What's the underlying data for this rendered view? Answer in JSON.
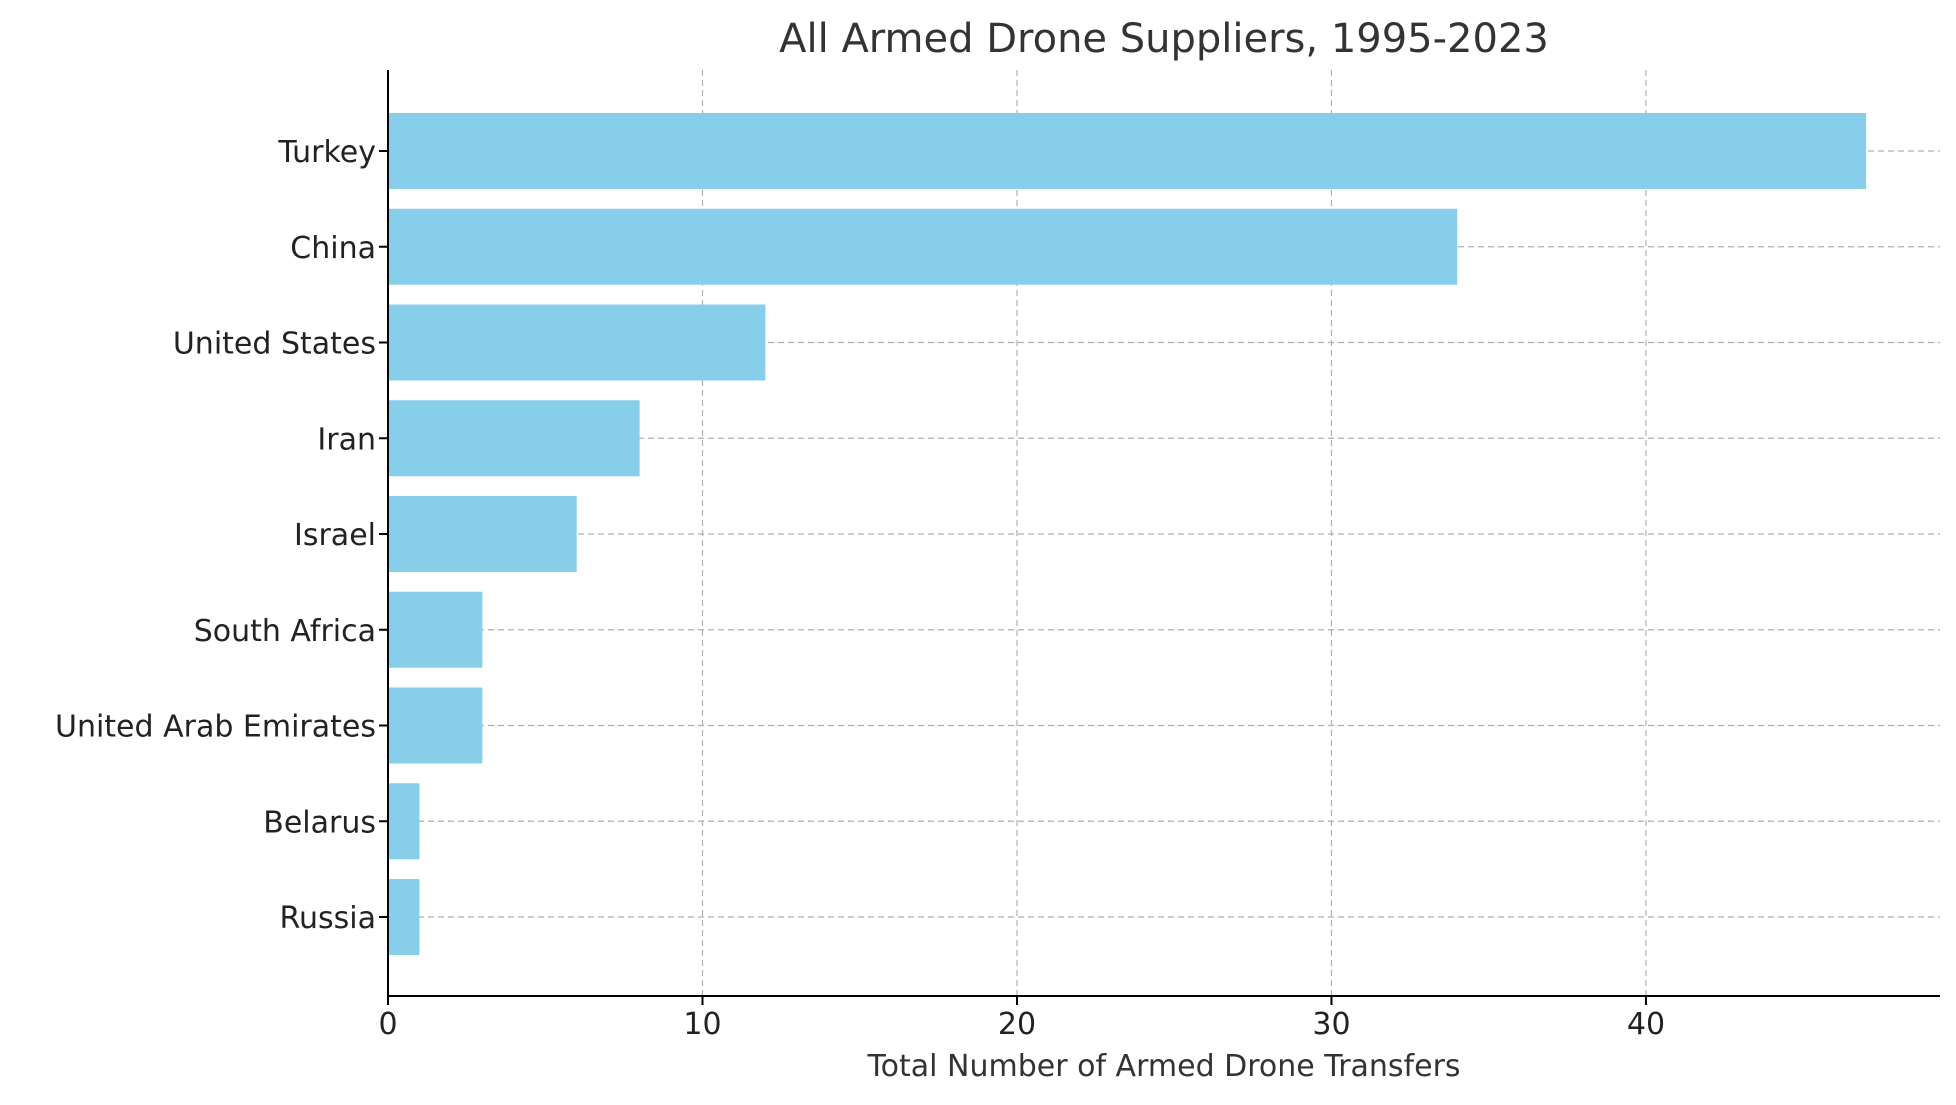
{
  "chart_data": {
    "type": "bar",
    "orientation": "horizontal",
    "title": "All Armed Drone Suppliers, 1995-2023",
    "xlabel": "Total Number of Armed Drone Transfers",
    "ylabel": "",
    "categories": [
      "Turkey",
      "China",
      "United States",
      "Iran",
      "Israel",
      "South Africa",
      "United Arab Emirates",
      "Belarus",
      "Russia"
    ],
    "values": [
      47,
      34,
      12,
      8,
      6,
      3,
      3,
      1,
      1
    ],
    "xlim": [
      0,
      49.35
    ],
    "xticks": [
      0,
      10,
      20,
      30,
      40
    ],
    "grid": true,
    "bar_color": "#87CEEB",
    "grid_color": "#b0b0b0"
  }
}
